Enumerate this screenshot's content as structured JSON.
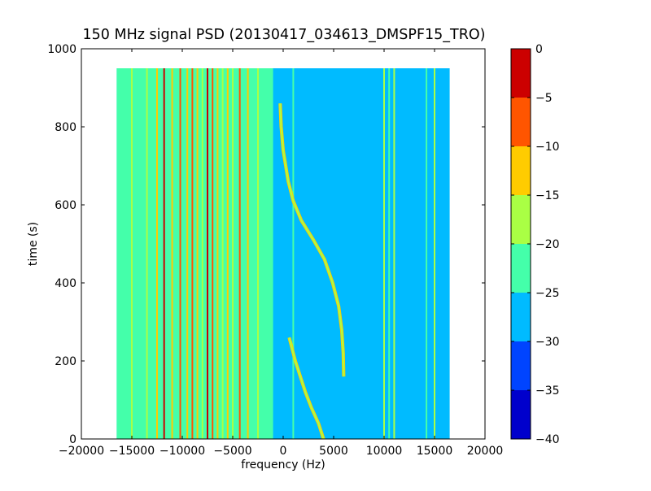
{
  "chart_data": {
    "type": "heatmap",
    "title": "150 MHz signal PSD (20130417_034613_DMSPF15_TRO)",
    "xlabel": "frequency (Hz)",
    "ylabel": "time (s)",
    "xlim": [
      -20000,
      20000
    ],
    "ylim": [
      0,
      1000
    ],
    "x_ticks": [
      -20000,
      -15000,
      -10000,
      -5000,
      0,
      5000,
      10000,
      15000,
      20000
    ],
    "x_tick_labels": [
      "−20000",
      "−15000",
      "−10000",
      "−5000",
      "0",
      "5000",
      "10000",
      "15000",
      "20000"
    ],
    "y_ticks": [
      0,
      200,
      400,
      600,
      800,
      1000
    ],
    "y_tick_labels": [
      "0",
      "200",
      "400",
      "600",
      "800",
      "1000"
    ],
    "data_extent": {
      "freq": [
        -16500,
        16500
      ],
      "time": [
        0,
        950
      ]
    },
    "colorbar": {
      "levels": [
        -40,
        -35,
        -30,
        -25,
        -20,
        -15,
        -10,
        -5,
        0
      ],
      "tick_labels": [
        "−40",
        "−35",
        "−30",
        "−25",
        "−20",
        "−15",
        "−10",
        "−5",
        "0"
      ],
      "colors": [
        "#0000cc",
        "#0044ff",
        "#00bbff",
        "#44ffaa",
        "#aaff44",
        "#ffcc00",
        "#ff5500",
        "#cc0000"
      ]
    },
    "background_level": -27.5,
    "regions": [
      {
        "name": "left-noise-band",
        "freq": [
          -16500,
          -2500
        ],
        "time": [
          0,
          950
        ],
        "level": -22.5
      },
      {
        "name": "left-transition-band",
        "freq": [
          -3500,
          -1000
        ],
        "time": [
          0,
          950
        ],
        "level": -22.5
      }
    ],
    "vertical_lines": [
      {
        "freq": -16000,
        "level": -22.5
      },
      {
        "freq": -15000,
        "level": -17.5
      },
      {
        "freq": -13500,
        "level": -17.5
      },
      {
        "freq": -12500,
        "level": -12.5
      },
      {
        "freq": -11800,
        "level": -2.5
      },
      {
        "freq": -11000,
        "level": -12.5
      },
      {
        "freq": -10200,
        "level": -7.5
      },
      {
        "freq": -9500,
        "level": -12.5
      },
      {
        "freq": -9000,
        "level": -7.5
      },
      {
        "freq": -8500,
        "level": -12.5
      },
      {
        "freq": -8000,
        "level": -17.5
      },
      {
        "freq": -7500,
        "level": -2.5
      },
      {
        "freq": -7000,
        "level": -7.5
      },
      {
        "freq": -6500,
        "level": -12.5
      },
      {
        "freq": -6000,
        "level": -17.5
      },
      {
        "freq": -5500,
        "level": -12.5
      },
      {
        "freq": -5000,
        "level": -17.5
      },
      {
        "freq": -4300,
        "level": -7.5
      },
      {
        "freq": -3500,
        "level": -12.5
      },
      {
        "freq": -2500,
        "level": -17.5
      },
      {
        "freq": 1000,
        "level": -22.5
      },
      {
        "freq": 10000,
        "level": -17.5
      },
      {
        "freq": 10500,
        "level": -22.5
      },
      {
        "freq": 11000,
        "level": -17.5
      },
      {
        "freq": 14200,
        "level": -22.5
      },
      {
        "freq": 15000,
        "level": -17.5
      }
    ],
    "series": [
      {
        "name": "Doppler trace (lower)",
        "level": -17.5,
        "points": [
          [
            4000,
            0
          ],
          [
            3500,
            40
          ],
          [
            2800,
            80
          ],
          [
            2200,
            120
          ],
          [
            1700,
            160
          ],
          [
            1200,
            200
          ],
          [
            800,
            240
          ],
          [
            600,
            260
          ]
        ]
      },
      {
        "name": "Doppler trace (upper)",
        "level": -17.5,
        "points": [
          [
            6000,
            160
          ],
          [
            5950,
            220
          ],
          [
            5800,
            280
          ],
          [
            5500,
            340
          ],
          [
            4900,
            400
          ],
          [
            4100,
            460
          ],
          [
            3000,
            510
          ],
          [
            1800,
            560
          ],
          [
            1000,
            610
          ],
          [
            500,
            660
          ],
          [
            0,
            740
          ],
          [
            -200,
            800
          ],
          [
            -300,
            860
          ]
        ]
      }
    ]
  }
}
